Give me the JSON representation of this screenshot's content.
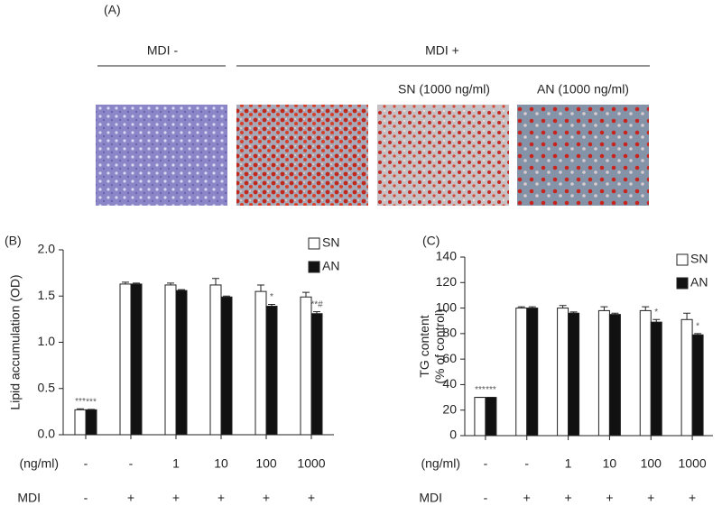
{
  "panel_a": {
    "label": "(A)",
    "group_minus": "MDI -",
    "group_plus": "MDI +",
    "image_captions": [
      "SN (1000 ng/ml)",
      "AN (1000 ng/ml)"
    ]
  },
  "chart_data": [
    {
      "type": "bar",
      "panel": "(B)",
      "ylabel": [
        "Lipid accumulation (OD)"
      ],
      "category_label": "(ng/ml)",
      "categories": [
        "-",
        "-",
        "1",
        "10",
        "100",
        "1000"
      ],
      "mdi_label": "MDI",
      "mdi": [
        "-",
        "+",
        "+",
        "+",
        "+",
        "+"
      ],
      "ylim": [
        0,
        2.0
      ],
      "yticks": [
        {
          "value": 0,
          "label": "0.0"
        },
        0.5,
        {
          "value": 1,
          "label": "1.0"
        },
        1.5,
        {
          "value": 2,
          "label": "2.0"
        }
      ],
      "legend": "upper right",
      "series": [
        {
          "name": "SN",
          "color": "#ffffff",
          "values": [
            0.27,
            1.63,
            1.62,
            1.62,
            1.55,
            1.49
          ],
          "errors": [
            0.01,
            0.02,
            0.02,
            0.07,
            0.07,
            0.05
          ],
          "sig_labels": [
            "***",
            null,
            null,
            null,
            null,
            null
          ]
        },
        {
          "name": "AN",
          "color": "#111111",
          "values": [
            0.27,
            1.63,
            1.56,
            1.49,
            1.39,
            1.31
          ],
          "errors": [
            0.005,
            0.01,
            0.01,
            0.01,
            0.02,
            0.02
          ],
          "sig_labels": [
            "***",
            null,
            null,
            null,
            "*",
            "**#"
          ]
        }
      ]
    },
    {
      "type": "bar",
      "panel": "(C)",
      "ylabel": [
        "TG content",
        "(% of control)"
      ],
      "category_label": "(ng/ml)",
      "categories": [
        "-",
        "-",
        "1",
        "10",
        "100",
        "1000"
      ],
      "mdi_label": "MDI",
      "mdi": [
        "-",
        "+",
        "+",
        "+",
        "+",
        "+"
      ],
      "ylim": [
        0,
        140
      ],
      "yticks": [
        0,
        20,
        40,
        60,
        80,
        100,
        120,
        140
      ],
      "legend": "upper right",
      "series": [
        {
          "name": "SN",
          "color": "#ffffff",
          "values": [
            30,
            100,
            100,
            98,
            98,
            91
          ],
          "errors": [
            0,
            1,
            2,
            3,
            3,
            5
          ],
          "sig_labels": [
            "***",
            null,
            null,
            null,
            null,
            null
          ]
        },
        {
          "name": "AN",
          "color": "#111111",
          "values": [
            30,
            100,
            96,
            95,
            89,
            79
          ],
          "errors": [
            0,
            1,
            1,
            1,
            2,
            1
          ],
          "sig_labels": [
            "***",
            null,
            null,
            null,
            "*",
            "*"
          ]
        }
      ]
    }
  ]
}
